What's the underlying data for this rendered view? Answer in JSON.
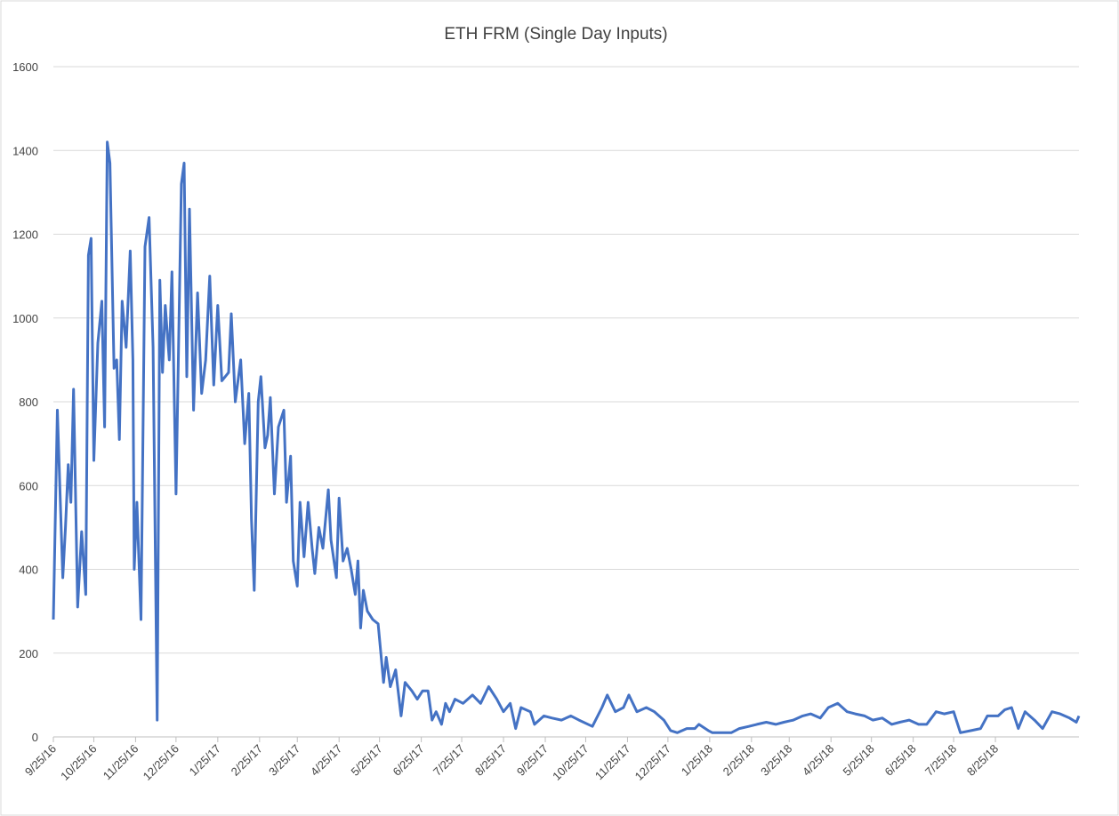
{
  "chart_data": {
    "type": "line",
    "title": "ETH FRM (Single Day Inputs)",
    "x": [
      "9/25/16",
      "9/28/16",
      "10/2/16",
      "10/4/16",
      "10/6/16",
      "10/8/16",
      "10/10/16",
      "10/13/16",
      "10/16/16",
      "10/19/16",
      "10/21/16",
      "10/23/16",
      "10/25/16",
      "10/28/16",
      "10/31/16",
      "11/2/16",
      "11/4/16",
      "11/6/16",
      "11/9/16",
      "11/11/16",
      "11/13/16",
      "11/15/16",
      "11/18/16",
      "11/21/16",
      "11/23/16",
      "11/24/16",
      "11/26/16",
      "11/29/16",
      "12/2/16",
      "12/5/16",
      "12/8/16",
      "12/11/16",
      "12/13/16",
      "12/15/16",
      "12/17/16",
      "12/20/16",
      "12/22/16",
      "12/25/16",
      "12/29/16",
      "12/31/16",
      "1/2/17",
      "1/4/17",
      "1/7/17",
      "1/10/17",
      "1/13/17",
      "1/16/17",
      "1/19/17",
      "1/22/17",
      "1/25/17",
      "1/28/17",
      "2/2/17",
      "2/4/17",
      "2/7/17",
      "2/11/17",
      "2/14/17",
      "2/17/17",
      "2/19/17",
      "2/21/17",
      "2/24/17",
      "2/26/17",
      "3/1/17",
      "3/3/17",
      "3/5/17",
      "3/8/17",
      "3/11/17",
      "3/15/17",
      "3/17/17",
      "3/20/17",
      "3/22/17",
      "3/25/17",
      "3/27/17",
      "3/30/17",
      "4/2/17",
      "4/5/17",
      "4/7/17",
      "4/10/17",
      "4/13/17",
      "4/17/17",
      "4/19/17",
      "4/23/17",
      "4/25/17",
      "4/28/17",
      "5/1/17",
      "5/4/17",
      "5/7/17",
      "5/9/17",
      "5/11/17",
      "5/13/17",
      "5/16/17",
      "5/20/17",
      "5/24/17",
      "5/28/17",
      "5/30/17",
      "6/2/17",
      "6/6/17",
      "6/10/17",
      "6/13/17",
      "6/18/17",
      "6/22/17",
      "6/26/17",
      "6/30/17",
      "7/3/17",
      "7/6/17",
      "7/10/17",
      "7/13/17",
      "7/16/17",
      "7/20/17",
      "7/26/17",
      "8/2/17",
      "8/8/17",
      "8/14/17",
      "8/20/17",
      "8/25/17",
      "8/30/17",
      "9/3/17",
      "9/7/17",
      "9/14/17",
      "9/17/17",
      "9/24/17",
      "9/30/17",
      "10/7/17",
      "10/14/17",
      "10/20/17",
      "10/30/17",
      "11/6/17",
      "11/10/17",
      "11/16/17",
      "11/22/17",
      "11/26/17",
      "12/2/17",
      "12/9/17",
      "12/15/17",
      "12/22/17",
      "12/27/17",
      "1/1/18",
      "1/8/18",
      "1/14/18",
      "1/17/18",
      "1/24/18",
      "1/27/18",
      "2/10/18",
      "2/16/18",
      "2/23/18",
      "3/1/18",
      "3/8/18",
      "3/15/18",
      "3/21/18",
      "3/28/18",
      "4/4/18",
      "4/10/18",
      "4/17/18",
      "4/23/18",
      "4/30/18",
      "5/7/18",
      "5/13/18",
      "5/20/18",
      "5/26/18",
      "6/2/18",
      "6/9/18",
      "6/15/18",
      "6/22/18",
      "6/29/18",
      "7/5/18",
      "7/12/18",
      "7/18/18",
      "7/25/18",
      "7/30/18",
      "8/7/18",
      "8/14/18",
      "8/19/18",
      "8/27/18",
      "9/1/18",
      "9/6/18",
      "9/11/18",
      "9/16/18",
      "9/23/18",
      "9/29/18",
      "10/6/18",
      "10/12/18",
      "10/19/18",
      "10/24/18",
      "10/26/18"
    ],
    "series": [
      {
        "name": "ETH FRM",
        "color": "#4472c4",
        "values": [
          280,
          780,
          380,
          500,
          650,
          560,
          830,
          310,
          490,
          340,
          1150,
          1190,
          660,
          940,
          1040,
          740,
          1420,
          1370,
          880,
          900,
          710,
          1040,
          930,
          1160,
          900,
          400,
          560,
          280,
          1170,
          1240,
          930,
          40,
          1090,
          870,
          1030,
          900,
          1110,
          580,
          1320,
          1370,
          860,
          1260,
          780,
          1060,
          820,
          900,
          1100,
          840,
          1030,
          850,
          870,
          1010,
          800,
          900,
          700,
          820,
          520,
          350,
          800,
          860,
          690,
          720,
          810,
          580,
          740,
          780,
          560,
          670,
          420,
          360,
          560,
          430,
          560,
          450,
          390,
          500,
          450,
          590,
          470,
          380,
          570,
          420,
          450,
          400,
          340,
          420,
          260,
          350,
          300,
          280,
          270,
          130,
          190,
          120,
          160,
          50,
          130,
          110,
          90,
          110,
          110,
          40,
          60,
          30,
          80,
          60,
          90,
          80,
          100,
          80,
          120,
          90,
          60,
          80,
          20,
          70,
          60,
          30,
          50,
          45,
          40,
          50,
          40,
          25,
          70,
          100,
          60,
          70,
          100,
          60,
          70,
          60,
          40,
          15,
          10,
          20,
          20,
          30,
          15,
          10,
          10,
          20,
          25,
          30,
          35,
          30,
          35,
          40,
          50,
          55,
          45,
          70,
          80,
          60,
          55,
          50,
          40,
          45,
          30,
          35,
          40,
          30,
          30,
          60,
          55,
          60,
          10,
          15,
          20,
          50,
          50,
          65,
          70,
          20,
          60,
          40,
          20,
          60,
          55,
          45,
          35,
          50
        ]
      }
    ],
    "xlim": [
      "9/25/16",
      "10/26/18"
    ],
    "xticks": [
      "9/25/16",
      "10/25/16",
      "11/25/16",
      "12/25/16",
      "1/25/17",
      "2/25/17",
      "3/25/17",
      "4/25/17",
      "5/25/17",
      "6/25/17",
      "7/25/17",
      "8/25/17",
      "9/25/17",
      "10/25/17",
      "11/25/17",
      "12/25/17",
      "1/25/18",
      "2/25/18",
      "3/25/18",
      "4/25/18",
      "5/25/18",
      "6/25/18",
      "7/25/18",
      "8/25/18"
    ],
    "ylim": [
      0,
      1600
    ],
    "yticks": [
      0,
      200,
      400,
      600,
      800,
      1000,
      1200,
      1400,
      1600
    ],
    "grid": true
  }
}
